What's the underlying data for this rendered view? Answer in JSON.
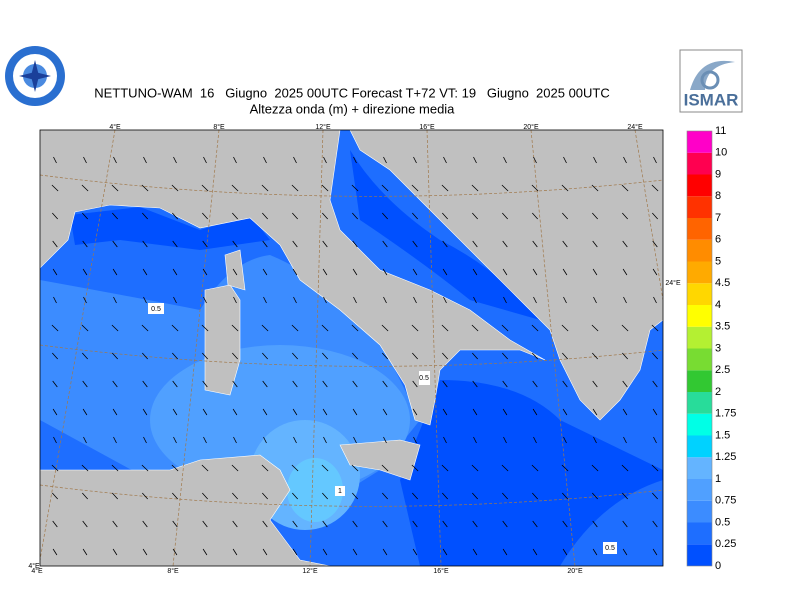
{
  "header": {
    "title": "NETTUNO-WAM  16   Giugno  2025 00UTC Forecast T+72 VT: 19   Giugno  2025 00UTC",
    "subtitle": "Altezza onda (m) + direzione media",
    "logo_text": "ISMAR"
  },
  "map": {
    "top_lon_labels": [
      "4°E",
      "8°E",
      "12°E",
      "16°E",
      "20°E",
      "24°E"
    ],
    "bottom_lon_labels": [
      "4°E",
      "8°E",
      "12°E",
      "16°E",
      "20°E"
    ],
    "corner_label": "4°E",
    "right_label": "24°E",
    "contour_labels": [
      "0.5",
      "0.5",
      "1",
      "0.5"
    ]
  },
  "colorbar": {
    "labels": [
      "0",
      "0.25",
      "0.5",
      "0.75",
      "1",
      "1.25",
      "1.5",
      "1.75",
      "2",
      "2.5",
      "3",
      "3.5",
      "4",
      "4.5",
      "5",
      "6",
      "7",
      "8",
      "9",
      "10",
      "11"
    ],
    "colors": [
      "#0050ff",
      "#1e6eff",
      "#3c8cff",
      "#50a0ff",
      "#64b4ff",
      "#00d2ff",
      "#00ffe6",
      "#28dc9a",
      "#32c832",
      "#78dc32",
      "#b4f032",
      "#ffff00",
      "#ffd700",
      "#ffaa00",
      "#ff8c00",
      "#ff6400",
      "#ff3200",
      "#ff0000",
      "#ff0050",
      "#ff00c8"
    ]
  }
}
